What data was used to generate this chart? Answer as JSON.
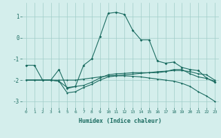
{
  "xlabel": "Humidex (Indice chaleur)",
  "bg_color": "#d4eeec",
  "grid_color": "#a0ccc8",
  "line_color": "#1a6b60",
  "xlim": [
    -0.5,
    23.5
  ],
  "ylim": [
    -3.3,
    1.65
  ],
  "yticks": [
    -3,
    -2,
    -1,
    0,
    1
  ],
  "xticks": [
    0,
    1,
    2,
    3,
    4,
    5,
    6,
    7,
    8,
    9,
    10,
    11,
    12,
    13,
    14,
    15,
    16,
    17,
    18,
    19,
    20,
    21,
    22,
    23
  ],
  "line1_x": [
    0,
    1,
    2,
    3,
    4,
    5,
    6,
    7,
    8,
    9,
    10,
    11,
    12,
    13,
    14,
    15,
    16,
    17,
    18,
    19,
    20,
    21,
    22,
    23
  ],
  "line1_y": [
    -1.3,
    -1.3,
    -2.0,
    -2.0,
    -1.5,
    -2.4,
    -2.3,
    -1.3,
    -1.0,
    0.05,
    1.15,
    1.2,
    1.1,
    0.35,
    -0.1,
    -0.1,
    -1.1,
    -1.2,
    -1.15,
    -1.4,
    -1.5,
    -1.55,
    -1.9,
    -2.1
  ],
  "line2_x": [
    0,
    1,
    2,
    3,
    4,
    5,
    6,
    7,
    8,
    9,
    10,
    11,
    12,
    13,
    14,
    15,
    16,
    17,
    18,
    19,
    20,
    21,
    22,
    23
  ],
  "line2_y": [
    -2.0,
    -2.0,
    -2.0,
    -2.0,
    -2.0,
    -2.0,
    -2.0,
    -1.95,
    -1.9,
    -1.85,
    -1.8,
    -1.78,
    -1.75,
    -1.72,
    -1.68,
    -1.65,
    -1.6,
    -1.58,
    -1.55,
    -1.55,
    -1.6,
    -1.7,
    -1.75,
    -2.0
  ],
  "line3_x": [
    0,
    1,
    2,
    3,
    4,
    5,
    6,
    7,
    8,
    9,
    10,
    11,
    12,
    13,
    14,
    15,
    16,
    17,
    18,
    19,
    20,
    21,
    22,
    23
  ],
  "line3_y": [
    -2.0,
    -2.0,
    -2.0,
    -2.0,
    -2.05,
    -2.35,
    -2.3,
    -2.25,
    -2.1,
    -1.9,
    -1.75,
    -1.7,
    -1.68,
    -1.65,
    -1.65,
    -1.65,
    -1.65,
    -1.6,
    -1.5,
    -1.5,
    -1.7,
    -1.85,
    -1.92,
    -2.05
  ],
  "line4_x": [
    0,
    1,
    2,
    3,
    4,
    5,
    6,
    7,
    8,
    9,
    10,
    11,
    12,
    13,
    14,
    15,
    16,
    17,
    18,
    19,
    20,
    21,
    22,
    23
  ],
  "line4_y": [
    -2.0,
    -2.0,
    -2.0,
    -2.0,
    -2.05,
    -2.6,
    -2.55,
    -2.35,
    -2.2,
    -2.0,
    -1.85,
    -1.8,
    -1.8,
    -1.82,
    -1.85,
    -1.9,
    -1.95,
    -2.0,
    -2.05,
    -2.15,
    -2.3,
    -2.55,
    -2.75,
    -3.0
  ]
}
